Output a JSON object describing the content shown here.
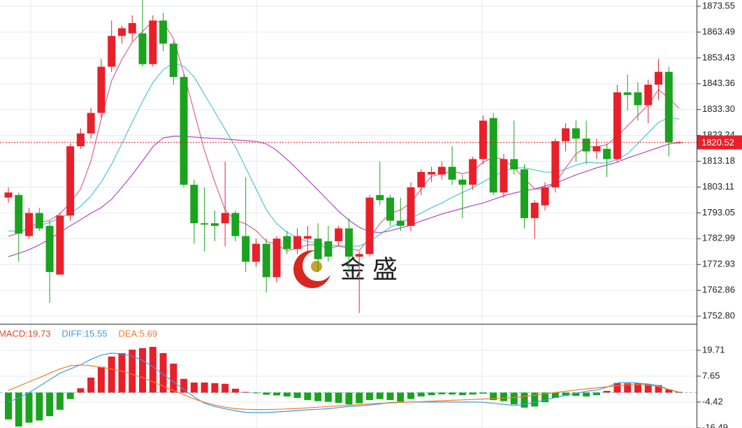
{
  "chart_data": [
    {
      "type": "candlestick",
      "up_color": "#e8202a",
      "down_color": "#1aa31e",
      "open": [
        1799,
        1800,
        1784,
        1793,
        1788,
        1769,
        1792,
        1819,
        1824,
        1832,
        1850,
        1862,
        1863,
        1863,
        1851,
        1868,
        1859,
        1846,
        1804,
        1789,
        1789,
        1789,
        1793,
        1784,
        1774,
        1781,
        1768,
        1784,
        1779,
        1783,
        1783,
        1782,
        1782,
        1787,
        1776,
        1777,
        1800,
        1799,
        1790,
        1788,
        1803,
        1808,
        1808,
        1811,
        1806,
        1804,
        1814,
        1830,
        1801,
        1814,
        1810,
        1791,
        1796,
        1803,
        1821,
        1826,
        1822,
        1817,
        1818,
        1814,
        1840,
        1840,
        1835,
        1843,
        1848,
        1820.4
      ],
      "high": [
        1803,
        1801,
        1795,
        1795,
        1790,
        1793,
        1820,
        1826,
        1834,
        1853,
        1868,
        1866,
        1870,
        1876,
        1870,
        1871,
        1860,
        1847,
        1806,
        1803,
        1794,
        1813,
        1794,
        1807,
        1783,
        1783,
        1784,
        1786,
        1787,
        1788,
        1789,
        1788,
        1788,
        1791,
        1778,
        1800,
        1813,
        1800,
        1799,
        1805,
        1810,
        1811,
        1813,
        1819,
        1808,
        1815,
        1831,
        1832,
        1816,
        1829,
        1812,
        1798,
        1805,
        1822,
        1828,
        1829,
        1829,
        1822,
        1820,
        1843,
        1847,
        1844,
        1845,
        1853,
        1850,
        1821
      ],
      "low": [
        1797,
        1774,
        1783,
        1786,
        1758,
        1769,
        1790,
        1818,
        1822,
        1830,
        1848,
        1859,
        1860,
        1850,
        1850,
        1856,
        1843,
        1803,
        1781,
        1778,
        1782,
        1780,
        1782,
        1770,
        1772,
        1762,
        1766,
        1777,
        1777,
        1778,
        1770,
        1774,
        1780,
        1770,
        1754,
        1776,
        1796,
        1788,
        1786,
        1786,
        1800,
        1805,
        1806,
        1804,
        1791,
        1802,
        1812,
        1800,
        1799,
        1808,
        1787,
        1783,
        1794,
        1801,
        1817,
        1813,
        1812,
        1814,
        1807,
        1813,
        1833,
        1829,
        1828,
        1837,
        1815,
        1820
      ],
      "close": [
        1801,
        1785,
        1793,
        1787,
        1770,
        1792,
        1819,
        1824,
        1832,
        1850,
        1862,
        1865,
        1867,
        1851,
        1868,
        1859,
        1846,
        1804,
        1789,
        1788.5,
        1788,
        1793,
        1784,
        1774,
        1781,
        1768,
        1783,
        1779,
        1784,
        1784,
        1775,
        1776,
        1787,
        1776,
        1777,
        1799,
        1798,
        1790,
        1788,
        1803,
        1809,
        1809,
        1811,
        1806,
        1804,
        1814,
        1829,
        1801,
        1814,
        1810,
        1791,
        1797,
        1803,
        1821,
        1826,
        1822,
        1817,
        1819,
        1814,
        1840,
        1839,
        1835,
        1843,
        1848,
        1820.5,
        1820.52
      ],
      "ma_lines": [
        {
          "color": "#e2608c",
          "values": [
            1783.9,
            1785.2,
            1787.4,
            1789.3,
            1790.1,
            1792.8,
            1796.9,
            1802.4,
            1813.3,
            1829.6,
            1844.6,
            1852.8,
            1859.6,
            1863.7,
            1867.8,
            1867.3,
            1861.0,
            1847.4,
            1832.4,
            1817.4,
            1805.1,
            1794.2,
            1790.1,
            1788.8,
            1786.1,
            1782.0,
            1780.6,
            1778.4,
            1779.2,
            1780.6,
            1780.6,
            1779.2,
            1780.1,
            1779.2,
            1778.4,
            1783.3,
            1788.8,
            1792.9,
            1794.2,
            1796.9,
            1802.4,
            1807.3,
            1808.4,
            1809.2,
            1808.4,
            1809.2,
            1812.8,
            1814.7,
            1813.9,
            1810.6,
            1806.5,
            1802.4,
            1802.4,
            1804.6,
            1810.6,
            1816.0,
            1818.8,
            1818.8,
            1819.6,
            1822.9,
            1827.0,
            1831.1,
            1835.1,
            1841.1,
            1837.8,
            1833.8
          ]
        },
        {
          "color": "#4cc4de",
          "values": [
            1786.0,
            1786.0,
            1786.6,
            1788.2,
            1789.3,
            1791.0,
            1792.9,
            1795.6,
            1799.7,
            1805.1,
            1811.9,
            1820.1,
            1828.3,
            1836.5,
            1843.8,
            1848.8,
            1851.5,
            1850.1,
            1846.0,
            1839.2,
            1832.4,
            1825.6,
            1818.8,
            1810.6,
            1802.4,
            1794.2,
            1788.8,
            1785.5,
            1783.3,
            1781.9,
            1781.1,
            1780.6,
            1780.3,
            1780.1,
            1780.1,
            1781.9,
            1784.6,
            1787.4,
            1789.3,
            1791.0,
            1792.9,
            1795.1,
            1796.9,
            1799.1,
            1801.0,
            1802.9,
            1805.1,
            1807.3,
            1809.2,
            1810.6,
            1810.6,
            1809.8,
            1808.9,
            1808.9,
            1810.1,
            1811.7,
            1812.8,
            1812.5,
            1812.5,
            1813.9,
            1816.1,
            1820.1,
            1824.2,
            1828.3,
            1830.2,
            1829.6
          ]
        },
        {
          "color": "#b04cc6",
          "values": [
            1776.0,
            1777.3,
            1778.7,
            1780.6,
            1782.8,
            1785.5,
            1788.0,
            1790.4,
            1792.9,
            1795.1,
            1798.3,
            1803.0,
            1807.9,
            1813.3,
            1818.8,
            1822.3,
            1822.9,
            1822.9,
            1822.6,
            1822.3,
            1822.1,
            1821.8,
            1821.5,
            1821.2,
            1820.9,
            1819.9,
            1817.4,
            1813.9,
            1810.0,
            1805.9,
            1801.9,
            1797.8,
            1793.7,
            1790.2,
            1787.4,
            1785.8,
            1785.3,
            1786.1,
            1787.2,
            1788.2,
            1789.9,
            1791.2,
            1792.6,
            1793.7,
            1794.8,
            1795.9,
            1796.9,
            1798.3,
            1799.7,
            1800.8,
            1801.6,
            1802.4,
            1803.5,
            1804.6,
            1806.2,
            1807.9,
            1809.2,
            1810.6,
            1811.7,
            1812.8,
            1814.4,
            1815.8,
            1817.1,
            1818.5,
            1819.9,
            1820.4
          ]
        }
      ],
      "last_price": 1820.52,
      "last_price_color": "#e8202a",
      "ylim": [
        1750.1,
        1876.0
      ],
      "yticks": [
        1873.55,
        1863.49,
        1853.43,
        1843.36,
        {
          "value": 1833.3,
          "label": "1833.30"
        },
        1823.24,
        1813.18,
        1803.11,
        1793.05,
        1782.99,
        1772.93,
        1762.86,
        {
          "value": 1752.8,
          "label": "1752.80"
        }
      ],
      "grid": true,
      "watermark": "金 盛"
    },
    {
      "type": "macd",
      "readout": [
        {
          "text": "MACD:19.73",
          "color": "#e5452c"
        },
        {
          "text": "DIFF:15.55",
          "color": "#3d9be3"
        },
        {
          "text": "DEA:5.69",
          "color": "#ee7d28"
        }
      ],
      "up_color": "#e8202a",
      "down_color": "#1aa31e",
      "histogram": [
        -12.5,
        -15.8,
        -14,
        -13,
        -11,
        -8,
        -3,
        2,
        7,
        12,
        16.8,
        18.4,
        20,
        20.7,
        21.3,
        18.4,
        13.5,
        6.4,
        4.7,
        4.7,
        4.4,
        4.1,
        1.8,
        0.3,
        -0.2,
        -1,
        -1.3,
        -1.8,
        -2.5,
        -3.5,
        -4,
        -4.3,
        -4.8,
        -5.5,
        -5,
        -3.5,
        -3,
        -3.5,
        -4.2,
        -3,
        -1.8,
        -1.2,
        -0.8,
        -0.9,
        -1.2,
        -0.9,
        -0.5,
        -3.5,
        -4,
        -5.5,
        -7,
        -6.5,
        -4.5,
        -2.5,
        -1.5,
        -1.5,
        -1.8,
        -1.2,
        0.8,
        4.5,
        4.3,
        4.3,
        4,
        3.5,
        1.5,
        0.3
      ],
      "series": [
        {
          "color": "#3d9be3",
          "values": [
            -4.4,
            -2.5,
            0,
            3,
            6,
            9,
            11,
            13,
            15.5,
            17.5,
            18.4,
            18,
            17,
            15,
            12,
            8.5,
            5,
            1.5,
            -2,
            -5,
            -6.5,
            -7.5,
            -8.5,
            -9.2,
            -9.3,
            -9.3,
            -9.0,
            -8.7,
            -8.4,
            -8.0,
            -7.8,
            -7.5,
            -7.0,
            -6.5,
            -6.2,
            -5.8,
            -5.3,
            -4.6,
            -4.5,
            -4.4,
            -4.4,
            -4.4,
            -4.4,
            -4.4,
            -4.4,
            -4.4,
            -4.5,
            -5,
            -5.5,
            -6,
            -5.5,
            -4.5,
            -3.5,
            -2.3,
            -1.2,
            -0.3,
            0.6,
            1.2,
            2.5,
            4.5,
            4.7,
            4.4,
            4.0,
            3.2,
            1.5,
            0
          ]
        },
        {
          "color": "#ee7d28",
          "values": [
            1,
            3,
            5,
            7,
            9,
            11,
            12.5,
            12.9,
            12.5,
            11.8,
            11,
            10,
            8.5,
            7,
            5,
            3,
            1,
            -1,
            -3,
            -4.5,
            -5.8,
            -6.8,
            -7.5,
            -7.8,
            -7.9,
            -7.9,
            -7.8,
            -7.6,
            -7.4,
            -7.1,
            -6.8,
            -6.5,
            -6.2,
            -5.9,
            -5.6,
            -5.3,
            -5.0,
            -4.8,
            -4.6,
            -4.4,
            -4.2,
            -4.0,
            -3.8,
            -3.6,
            -3.4,
            -3.2,
            -3.0,
            -2.8,
            -2.6,
            -2.3,
            -1.8,
            -1.2,
            -0.6,
            0,
            0.6,
            1.2,
            1.7,
            2.2,
            2.7,
            3.2,
            3.6,
            3.7,
            3.5,
            2.8,
            1.5,
            0.2
          ]
        }
      ],
      "ylim": [
        -16.5,
        31.4
      ],
      "yticks": [
        19.71,
        7.65,
        -4.42,
        -16.49
      ],
      "grid": true
    }
  ]
}
